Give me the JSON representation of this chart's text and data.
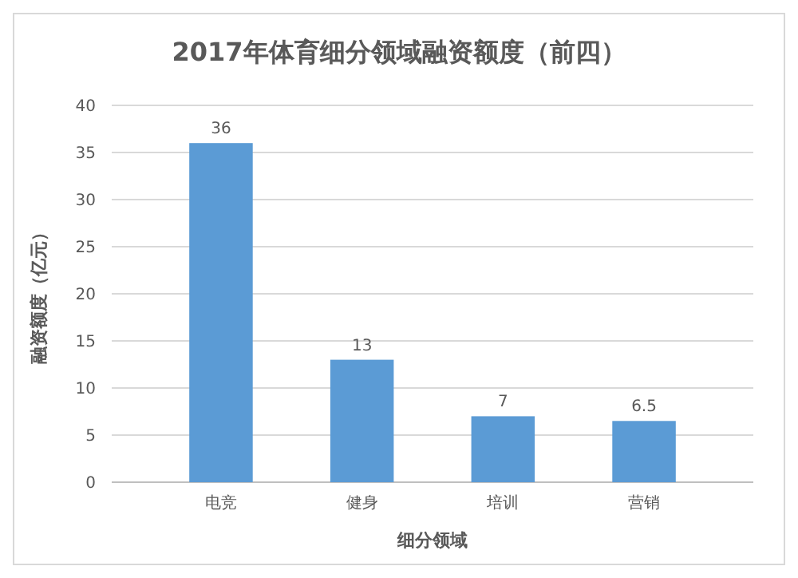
{
  "chart_data": {
    "type": "bar",
    "title": "2017年体育细分领域融资额度（前四）",
    "xlabel": "细分领域",
    "ylabel": "融资额度（亿元）",
    "categories": [
      "电竞",
      "健身",
      "培训",
      "营销"
    ],
    "values": [
      36,
      13,
      7,
      6.5
    ],
    "color": "#5b9bd5",
    "ylim": [
      0,
      40
    ],
    "yticks": [
      0,
      5,
      10,
      15,
      20,
      25,
      30,
      35,
      40
    ],
    "grid": "y",
    "data_labels": true
  }
}
